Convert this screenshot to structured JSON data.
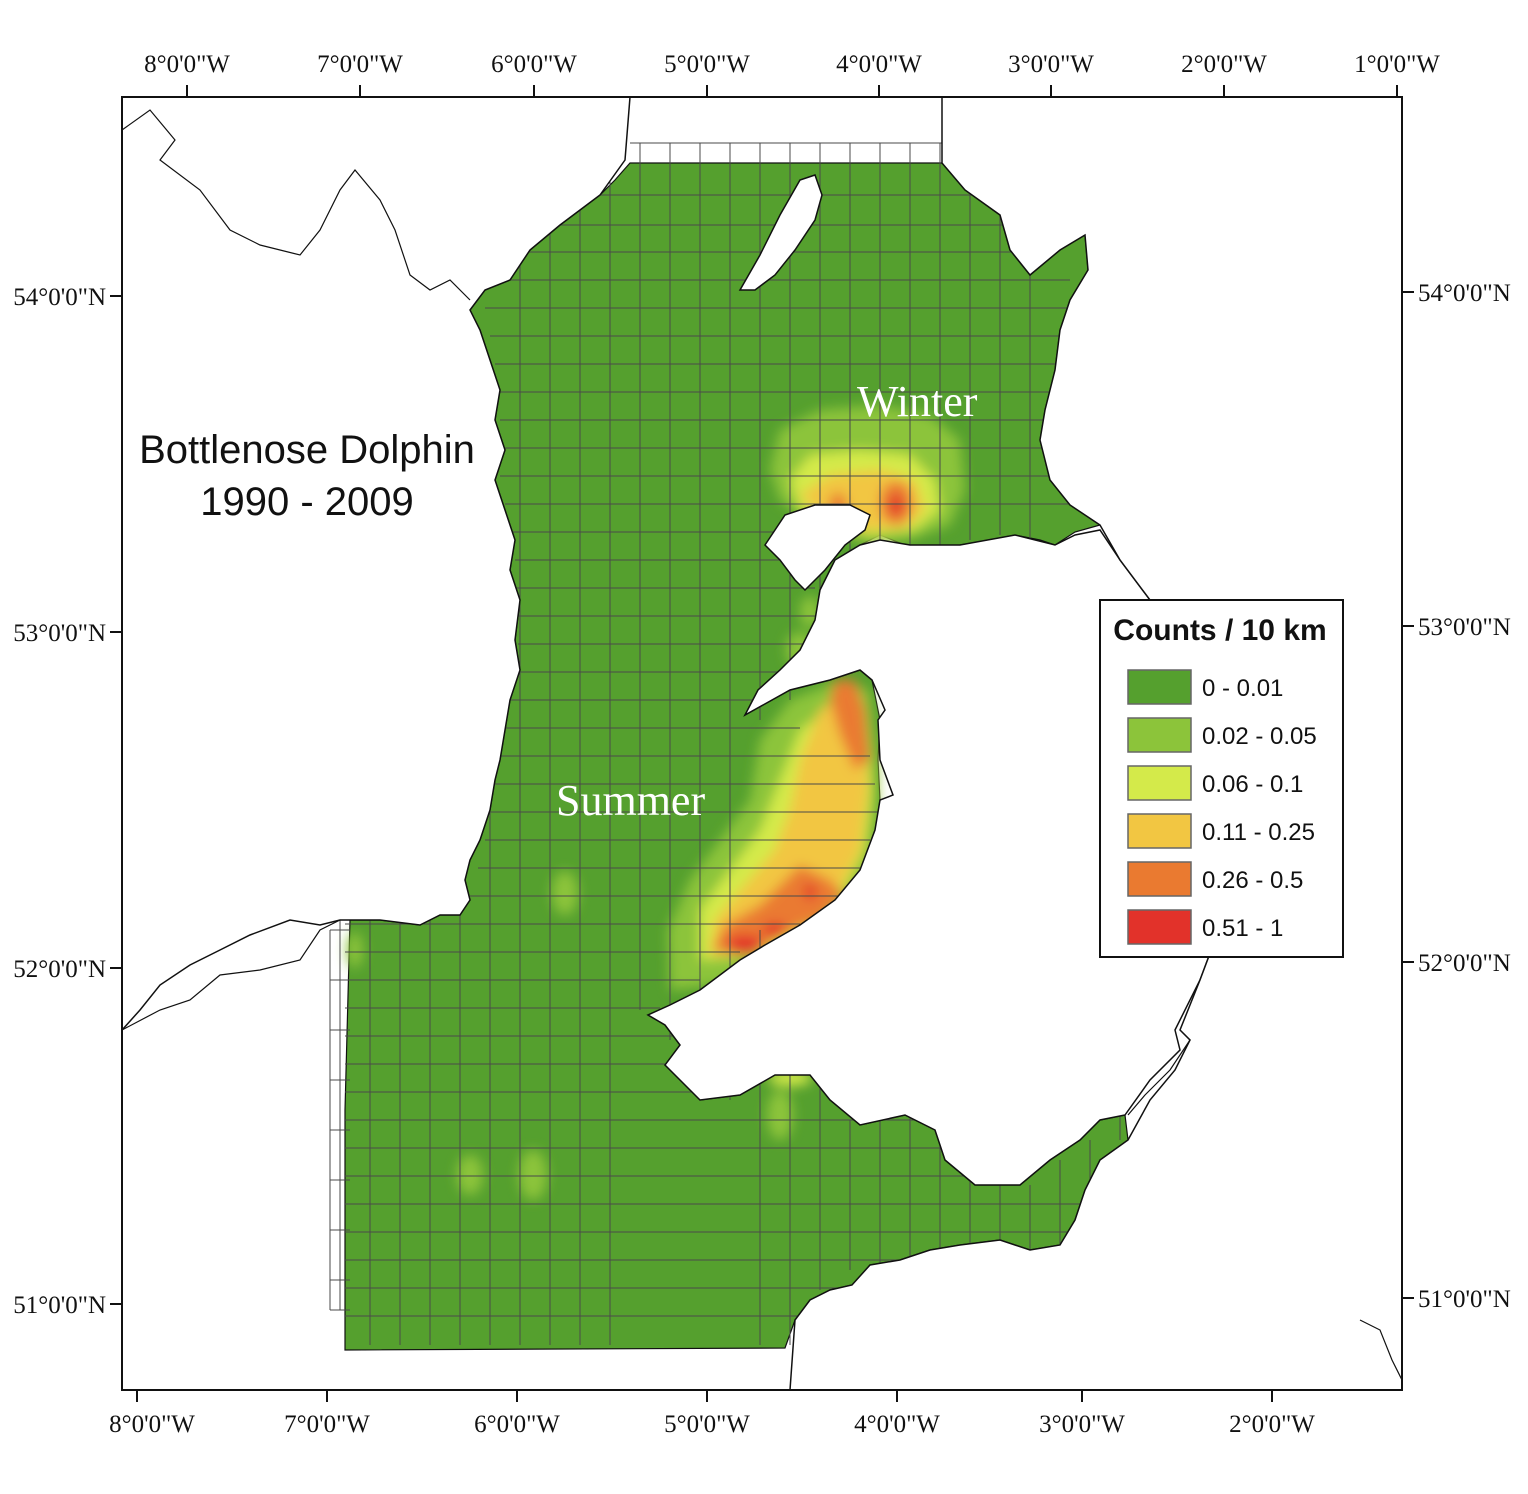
{
  "title": {
    "line1": "Bottlenose Dolphin",
    "line2": "1990 - 2009"
  },
  "season_labels": {
    "winter": "Winter",
    "summer": "Summer"
  },
  "axes": {
    "top_longitude": [
      "8°0'0\"W",
      "7°0'0\"W",
      "6°0'0\"W",
      "5°0'0\"W",
      "4°0'0\"W",
      "3°0'0\"W",
      "2°0'0\"W",
      "1°0'0\"W"
    ],
    "bottom_longitude": [
      "8°0'0\"W",
      "7°0'0\"W",
      "6°0'0\"W",
      "5°0'0\"W",
      "4°0'0\"W",
      "3°0'0\"W",
      "2°0'0\"W"
    ],
    "left_latitude": [
      "54°0'0\"N",
      "53°0'0\"N",
      "52°0'0\"N",
      "51°0'0\"N"
    ],
    "right_latitude": [
      "54°0'0\"N",
      "53°0'0\"N",
      "52°0'0\"N",
      "51°0'0\"N"
    ]
  },
  "legend": {
    "title": "Counts / 10 km",
    "classes": [
      {
        "label": "0 - 0.01",
        "color": "#55a02e"
      },
      {
        "label": "0.02 - 0.05",
        "color": "#8cc43a"
      },
      {
        "label": "0.06 - 0.1",
        "color": "#d4ea4a"
      },
      {
        "label": "0.11 - 0.25",
        "color": "#f2c642"
      },
      {
        "label": "0.26 - 0.5",
        "color": "#ea7a30"
      },
      {
        "label": "0.51 - 1",
        "color": "#e2322a"
      }
    ]
  },
  "colors": {
    "land": "#ffffff",
    "coastline": "#111111",
    "grid": "#4a4a4a",
    "frame": "#111111"
  }
}
